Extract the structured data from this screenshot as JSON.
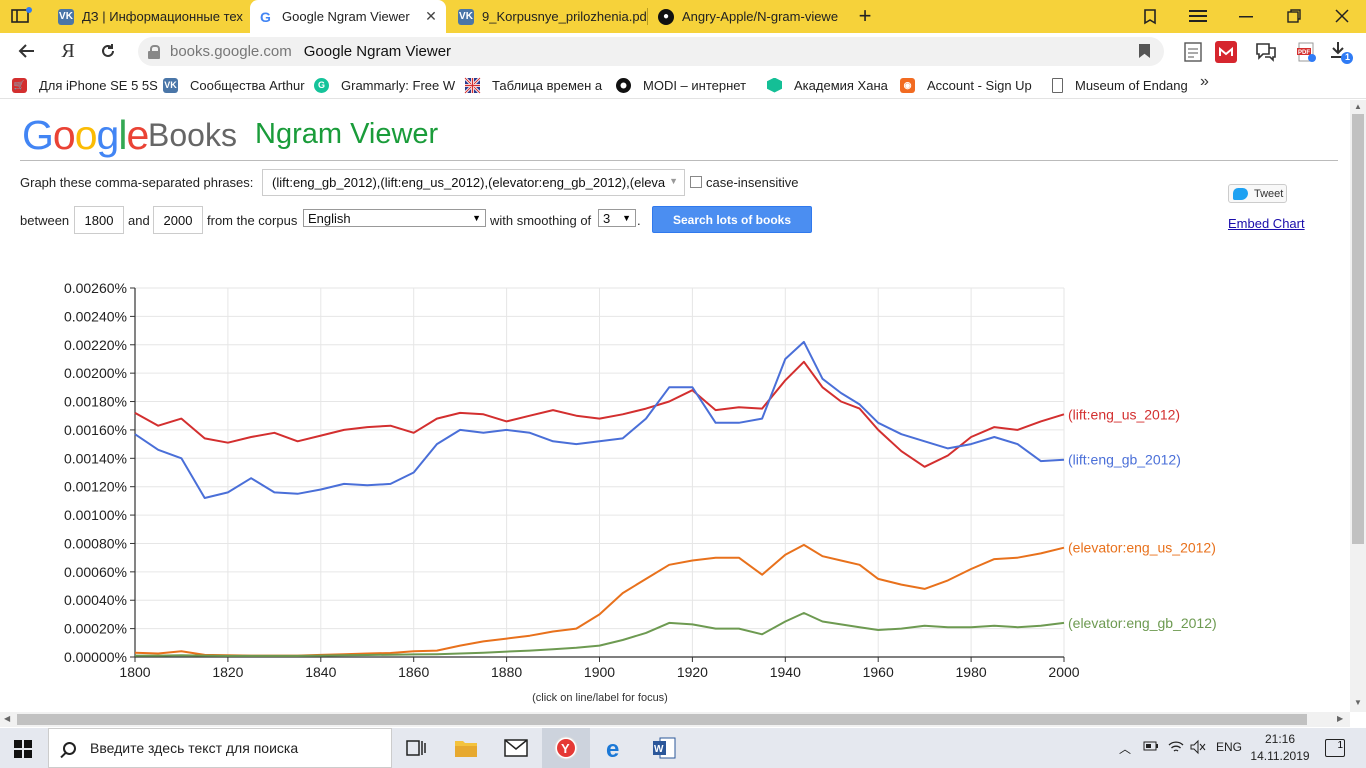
{
  "browser": {
    "tabs": [
      {
        "title": "ДЗ | Информационные тех",
        "icon": "vk-icon",
        "active": false
      },
      {
        "title": "Google Ngram Viewer",
        "icon": "google-icon",
        "active": true
      },
      {
        "title": "9_Korpusnye_prilozhenia.pd",
        "icon": "vk-icon",
        "active": false
      },
      {
        "title": "Angry-Apple/N-gram-viewe",
        "icon": "github-icon",
        "active": false
      }
    ],
    "new_tab": "+",
    "address": {
      "domain": "books.google.com",
      "page_title": "Google Ngram Viewer"
    },
    "download_badge": "1",
    "bookmarks": [
      {
        "label": "Для iPhone SE 5 5S",
        "icon": "bookmark-red-icon",
        "color": "#d32f2f"
      },
      {
        "label": "Сообщества Arthur",
        "icon": "vk-icon",
        "color": "#4a76a8"
      },
      {
        "label": "Grammarly: Free W",
        "icon": "grammarly-icon",
        "color": "#15c39a"
      },
      {
        "label": "Таблица времен а",
        "icon": "uk-flag-icon",
        "color": "#2b3b8f"
      },
      {
        "label": "MODI – интернет",
        "icon": "modi-icon",
        "color": "#111111"
      },
      {
        "label": "Академия Хана",
        "icon": "khan-icon",
        "color": "#14bf96"
      },
      {
        "label": "Account - Sign Up",
        "icon": "orange-icon",
        "color": "#f26b21"
      },
      {
        "label": "Museum of Endang",
        "icon": "page-icon",
        "color": "#ffffff"
      }
    ]
  },
  "ngram": {
    "logo_google": [
      "G",
      "o",
      "o",
      "g",
      "l",
      "e"
    ],
    "logo_books": "Books",
    "logo_ngram": "Ngram Viewer",
    "graph_label": "Graph these comma-separated phrases:",
    "query": "(lift:eng_gb_2012),(lift:eng_us_2012),(elevator:eng_gb_2012),(eleva",
    "case_insensitive": "case-insensitive",
    "between": "between",
    "year_start": "1800",
    "and": "and",
    "year_end": "2000",
    "from_corpus": "from the corpus",
    "corpus": "English",
    "with_smoothing": "with smoothing of",
    "smoothing": "3",
    "period": ".",
    "search_button": "Search lots of books",
    "tweet": "Tweet",
    "embed_chart": "Embed Chart",
    "chart_note": "(click on line/label for focus)"
  },
  "taskbar": {
    "search_placeholder": "Введите здесь текст для поиска",
    "lang": "ENG",
    "time": "21:16",
    "date": "14.11.2019",
    "notifications": "1"
  },
  "chart_data": {
    "type": "line",
    "xlabel": "",
    "ylabel": "",
    "xlim": [
      1800,
      2000
    ],
    "ylim": [
      0,
      0.0026
    ],
    "x_ticks": [
      1800,
      1820,
      1840,
      1860,
      1880,
      1900,
      1920,
      1940,
      1960,
      1980,
      2000
    ],
    "y_ticks": [
      "0.00000%",
      "0.00020%",
      "0.00040%",
      "0.00060%",
      "0.00080%",
      "0.00100%",
      "0.00120%",
      "0.00140%",
      "0.00160%",
      "0.00180%",
      "0.00200%",
      "0.00220%",
      "0.00240%",
      "0.00260%"
    ],
    "grid": true,
    "legend": "right",
    "x": [
      1800,
      1805,
      1810,
      1815,
      1820,
      1825,
      1830,
      1835,
      1840,
      1845,
      1850,
      1855,
      1860,
      1865,
      1870,
      1875,
      1880,
      1885,
      1890,
      1895,
      1900,
      1905,
      1910,
      1915,
      1920,
      1925,
      1930,
      1935,
      1940,
      1944,
      1948,
      1952,
      1956,
      1960,
      1965,
      1970,
      1975,
      1980,
      1985,
      1990,
      1995,
      2000
    ],
    "series": [
      {
        "name": "(lift:eng_us_2012)",
        "color": "#d32f2f",
        "values": [
          0.00172,
          0.00163,
          0.00168,
          0.00154,
          0.00151,
          0.00155,
          0.00158,
          0.00152,
          0.00156,
          0.0016,
          0.00162,
          0.00163,
          0.00158,
          0.00168,
          0.00172,
          0.00171,
          0.00166,
          0.0017,
          0.00174,
          0.0017,
          0.00168,
          0.00171,
          0.00175,
          0.0018,
          0.00188,
          0.00174,
          0.00176,
          0.00175,
          0.00195,
          0.00208,
          0.0019,
          0.0018,
          0.00175,
          0.0016,
          0.00145,
          0.00134,
          0.00142,
          0.00155,
          0.00162,
          0.0016,
          0.00166,
          0.00171
        ]
      },
      {
        "name": "(lift:eng_gb_2012)",
        "color": "#4a6fd8",
        "values": [
          0.00157,
          0.00146,
          0.0014,
          0.00112,
          0.00116,
          0.00126,
          0.00116,
          0.00115,
          0.00118,
          0.00122,
          0.00121,
          0.00122,
          0.0013,
          0.0015,
          0.0016,
          0.00158,
          0.0016,
          0.00158,
          0.00152,
          0.0015,
          0.00152,
          0.00154,
          0.00168,
          0.0019,
          0.0019,
          0.00165,
          0.00165,
          0.00168,
          0.0021,
          0.00222,
          0.00196,
          0.00186,
          0.00178,
          0.00165,
          0.00157,
          0.00152,
          0.00147,
          0.0015,
          0.00155,
          0.0015,
          0.00138,
          0.00139
        ]
      },
      {
        "name": "(elevator:eng_us_2012)",
        "color": "#e8711c",
        "values": [
          3e-05,
          2.5e-05,
          4e-05,
          1.5e-05,
          1.2e-05,
          1e-05,
          1e-05,
          1e-05,
          1.5e-05,
          2e-05,
          2.5e-05,
          2.8e-05,
          4e-05,
          4.5e-05,
          8e-05,
          0.00011,
          0.00013,
          0.00015,
          0.00018,
          0.0002,
          0.0003,
          0.00045,
          0.00055,
          0.00065,
          0.00068,
          0.0007,
          0.0007,
          0.00058,
          0.00072,
          0.00079,
          0.00071,
          0.00068,
          0.00065,
          0.00055,
          0.00051,
          0.00048,
          0.00054,
          0.00062,
          0.00069,
          0.0007,
          0.00073,
          0.00077
        ]
      },
      {
        "name": "(elevator:eng_gb_2012)",
        "color": "#6d9a51",
        "values": [
          1e-05,
          1e-05,
          1.2e-05,
          1e-05,
          8e-06,
          8e-06,
          8e-06,
          8e-06,
          1e-05,
          1.2e-05,
          1.4e-05,
          1.6e-05,
          1.8e-05,
          2e-05,
          2.5e-05,
          3e-05,
          3.8e-05,
          4.5e-05,
          5.5e-05,
          6.5e-05,
          8e-05,
          0.00012,
          0.00017,
          0.00024,
          0.00023,
          0.0002,
          0.0002,
          0.00016,
          0.00025,
          0.00031,
          0.00025,
          0.00023,
          0.00021,
          0.00019,
          0.0002,
          0.00022,
          0.00021,
          0.00021,
          0.00022,
          0.00021,
          0.00022,
          0.00024
        ]
      }
    ]
  }
}
